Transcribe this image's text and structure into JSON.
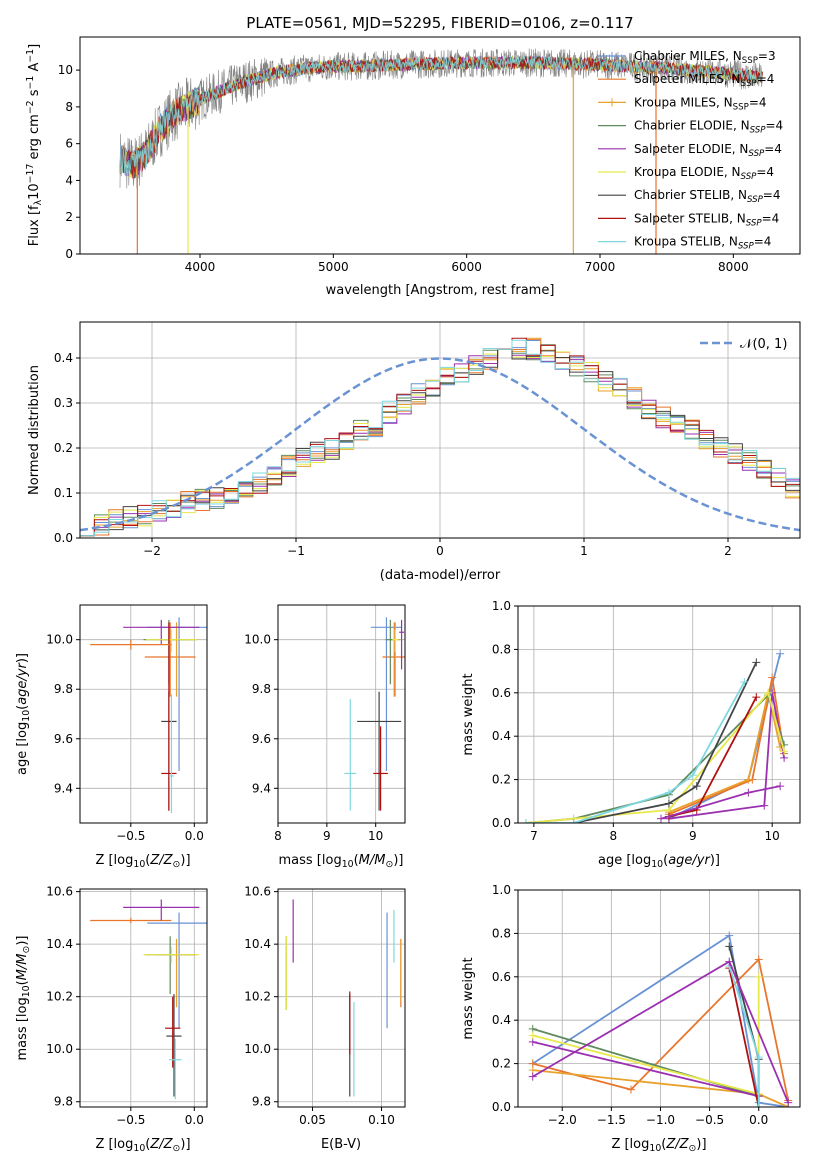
{
  "title": "PLATE=0561, MJD=52295, FIBERID=0106, z=0.117",
  "colors": {
    "chabrier_miles": "#6a93d4",
    "salpeter_miles": "#e8762c",
    "kroupa_miles": "#e8a12c",
    "chabrier_elodie": "#5f8a5f",
    "salpeter_elodie": "#9b30b0",
    "kroupa_elodie": "#e8e84c",
    "chabrier_stelib": "#444444",
    "salpeter_stelib": "#b01010",
    "kroupa_stelib": "#7fd8e0",
    "normal": "#6a93d4"
  },
  "chart_data": [
    {
      "type": "line",
      "panel": "spectrum",
      "title": "PLATE=0561, MJD=52295, FIBERID=0106, z=0.117",
      "xlabel": "wavelength [Angstrom, rest frame]",
      "ylabel": "Flux [f_λ 10^-17 erg cm^-2 s^-1 A^-1]",
      "xlim": [
        3100,
        8500
      ],
      "ylim": [
        0,
        11.8
      ],
      "xticks": [
        4000,
        5000,
        6000,
        7000,
        8000
      ],
      "yticks": [
        0,
        2,
        4,
        6,
        8,
        10
      ],
      "legend_position": "top-right",
      "legend": [
        {
          "base": "Chabrier MILES, N",
          "sub": "SSP",
          "tail": "=3"
        },
        {
          "base": "Salpeter MILES, N",
          "sub": "SSP",
          "tail": "=4"
        },
        {
          "base": "Kroupa MILES, N",
          "sub": "SSP",
          "tail": "=4"
        },
        {
          "base": "Chabrier ELODIE, N",
          "sub": "SSP",
          "tail": "=4"
        },
        {
          "base": "Salpeter ELODIE, N",
          "sub": "SSP",
          "tail": "=4"
        },
        {
          "base": "Kroupa ELODIE, N",
          "sub": "SSP",
          "tail": "=4"
        },
        {
          "base": "Chabrier STELIB, N",
          "sub": "SSP",
          "tail": "=4"
        },
        {
          "base": "Salpeter STELIB, N",
          "sub": "SSP",
          "tail": "=4"
        },
        {
          "base": "Kroupa STELIB, N",
          "sub": "SSP",
          "tail": "=4"
        }
      ],
      "continuum": {
        "x": [
          3400,
          3500,
          3600,
          3700,
          3800,
          3900,
          4000,
          4100,
          4200,
          4300,
          4400,
          4500,
          4600,
          4700,
          4800,
          5000,
          5200,
          5500,
          6000,
          6500,
          7000,
          7500,
          8000,
          8200
        ],
        "y": [
          5.2,
          4.8,
          5.5,
          6.8,
          7.6,
          8.0,
          8.4,
          8.7,
          9.0,
          9.3,
          9.5,
          9.7,
          9.9,
          10.0,
          10.1,
          10.2,
          10.2,
          10.3,
          10.4,
          10.4,
          10.3,
          10.1,
          9.8,
          9.6
        ]
      },
      "spikes": [
        {
          "x": 3530,
          "series": "salpeter_miles"
        },
        {
          "x": 3910,
          "series": "kroupa_elodie"
        },
        {
          "x": 6800,
          "series": "kroupa_miles"
        },
        {
          "x": 7420,
          "series": "salpeter_miles"
        }
      ]
    },
    {
      "type": "bar",
      "panel": "residual-histogram",
      "xlabel": "(data-model)/error",
      "ylabel": "Normed distribution",
      "xlim": [
        -2.5,
        2.5
      ],
      "ylim": [
        0,
        0.48
      ],
      "xticks": [
        -2,
        -1,
        0,
        1,
        2
      ],
      "yticks": [
        0.0,
        0.1,
        0.2,
        0.3,
        0.4
      ],
      "grid": true,
      "legend_position": "top-right",
      "normal_label": "𝒩(0, 1)",
      "bin_width": 0.1,
      "bin_start": -2.5,
      "base_density": [
        0.03,
        0.03,
        0.04,
        0.045,
        0.05,
        0.06,
        0.07,
        0.08,
        0.085,
        0.09,
        0.1,
        0.11,
        0.12,
        0.14,
        0.16,
        0.18,
        0.19,
        0.2,
        0.22,
        0.24,
        0.25,
        0.28,
        0.3,
        0.32,
        0.34,
        0.36,
        0.37,
        0.38,
        0.4,
        0.41,
        0.42,
        0.42,
        0.41,
        0.4,
        0.38,
        0.37,
        0.35,
        0.33,
        0.31,
        0.29,
        0.27,
        0.26,
        0.24,
        0.22,
        0.2,
        0.19,
        0.17,
        0.15,
        0.13,
        0.11,
        0.1,
        0.09,
        0.08,
        0.07,
        0.065,
        0.06,
        0.055,
        0.05,
        0.045,
        0.04
      ]
    },
    {
      "type": "scatter",
      "panel": "age-vs-Z",
      "xlabel": "Z [log10(Z/Z☉)]",
      "ylabel": "age  [log10(age/yr)]",
      "xlim": [
        -0.9,
        0.1
      ],
      "ylim": [
        9.26,
        10.14
      ],
      "xticks": [
        -0.5,
        0.0
      ],
      "yticks": [
        9.4,
        9.6,
        9.8,
        10.0
      ],
      "grid": true,
      "points": [
        {
          "series": "chabrier_miles",
          "x": -0.12,
          "xerr": 0.25,
          "y": 10.05,
          "yerr_lo": 0.58,
          "yerr_hi": 0.04
        },
        {
          "series": "salpeter_miles",
          "x": -0.19,
          "xerr": 0.2,
          "y": 9.93,
          "yerr_lo": 0.16,
          "yerr_hi": 0.14
        },
        {
          "series": "kroupa_miles",
          "x": -0.14,
          "xerr": 0.16,
          "y": 10.0,
          "yerr_lo": 0.23,
          "yerr_hi": 0.07
        },
        {
          "series": "chabrier_elodie",
          "x": -0.2,
          "xerr": 0.2,
          "y": 10.0,
          "yerr_lo": 0.18,
          "yerr_hi": 0.08
        },
        {
          "series": "salpeter_elodie",
          "x": -0.26,
          "xerr": 0.3,
          "y": 10.05,
          "yerr_lo": 0.07,
          "yerr_hi": 0.03
        },
        {
          "series": "kroupa_elodie",
          "x": -0.18,
          "xerr": 0.2,
          "y": 10.0,
          "yerr_lo": 0.05,
          "yerr_hi": 0.04
        },
        {
          "series": "chabrier_stelib",
          "x": -0.2,
          "xerr": 0.06,
          "y": 9.67,
          "yerr_lo": 0.36,
          "yerr_hi": 0.12
        },
        {
          "series": "salpeter_stelib",
          "x": -0.2,
          "xerr": 0.06,
          "y": 9.46,
          "yerr_lo": 0.15,
          "yerr_hi": 0.61
        },
        {
          "series": "kroupa_stelib",
          "x": -0.18,
          "xerr": 0.02,
          "y": 9.45,
          "yerr_lo": 0.15,
          "yerr_hi": 0.33
        },
        {
          "series": "salpeter_miles",
          "x": -0.5,
          "xerr": 0.32,
          "y": 9.98,
          "yerr_lo": 0.02,
          "yerr_hi": 0.02
        }
      ]
    },
    {
      "type": "scatter",
      "panel": "age-vs-mass",
      "xlabel": "mass [log10(M/M☉)]",
      "ylabel": "",
      "xlim": [
        8.0,
        10.6
      ],
      "ylim": [
        9.26,
        10.14
      ],
      "xticks": [
        8,
        9,
        10
      ],
      "yticks": [
        9.4,
        9.6,
        9.8,
        10.0
      ],
      "grid": true,
      "points": [
        {
          "series": "chabrier_miles",
          "x": 10.22,
          "xerr": 0.32,
          "y": 10.05,
          "yerr_lo": 0.58,
          "yerr_hi": 0.04
        },
        {
          "series": "salpeter_miles",
          "x": 10.38,
          "xerr": 0.24,
          "y": 9.93,
          "yerr_lo": 0.16,
          "yerr_hi": 0.14
        },
        {
          "series": "kroupa_miles",
          "x": 10.4,
          "xerr": 0.1,
          "y": 10.0,
          "yerr_lo": 0.23,
          "yerr_hi": 0.07
        },
        {
          "series": "chabrier_elodie",
          "x": 10.3,
          "xerr": 0.1,
          "y": 10.0,
          "yerr_lo": 0.18,
          "yerr_hi": 0.08
        },
        {
          "series": "salpeter_elodie",
          "x": 10.53,
          "xerr": 0.05,
          "y": 10.03,
          "yerr_lo": 0.15,
          "yerr_hi": 0.05
        },
        {
          "series": "kroupa_elodie",
          "x": 10.4,
          "xerr": 0.06,
          "y": 10.0,
          "yerr_lo": 0.05,
          "yerr_hi": 0.04
        },
        {
          "series": "chabrier_stelib",
          "x": 10.07,
          "xerr": 0.45,
          "y": 9.67,
          "yerr_lo": 0.36,
          "yerr_hi": 0.12
        },
        {
          "series": "salpeter_stelib",
          "x": 10.1,
          "xerr": 0.15,
          "y": 9.46,
          "yerr_lo": 0.15,
          "yerr_hi": 0.19
        },
        {
          "series": "kroupa_stelib",
          "x": 9.48,
          "xerr": 0.12,
          "y": 9.46,
          "yerr_lo": 0.15,
          "yerr_hi": 0.3
        }
      ]
    },
    {
      "type": "line",
      "panel": "mass-weight-vs-age",
      "xlabel": "age  [log10(age/yr)]",
      "ylabel": "mass weight",
      "xlim": [
        6.8,
        10.35
      ],
      "ylim": [
        0,
        1.0
      ],
      "xticks": [
        7,
        8,
        9,
        10
      ],
      "yticks": [
        0.0,
        0.2,
        0.4,
        0.6,
        0.8,
        1.0
      ],
      "grid": true,
      "series": [
        {
          "id": "chabrier_miles",
          "x": [
            8.7,
            9.7,
            10.1
          ],
          "y": [
            0.02,
            0.2,
            0.78
          ]
        },
        {
          "id": "salpeter_miles",
          "x": [
            8.7,
            9.75,
            10.0,
            10.15
          ],
          "y": [
            0.04,
            0.2,
            0.67,
            0.32
          ]
        },
        {
          "id": "kroupa_miles",
          "x": [
            8.7,
            9.7,
            9.95,
            10.1
          ],
          "y": [
            0.05,
            0.2,
            0.6,
            0.35
          ]
        },
        {
          "id": "chabrier_elodie",
          "x": [
            6.9,
            7.5,
            8.7,
            9.95,
            10.15
          ],
          "y": [
            0.0,
            0.02,
            0.13,
            0.59,
            0.36
          ]
        },
        {
          "id": "salpeter_elodie",
          "x": [
            8.7,
            9.9,
            10.0,
            10.15
          ],
          "y": [
            0.02,
            0.08,
            0.6,
            0.3
          ]
        },
        {
          "id": "kroupa_elodie",
          "x": [
            6.9,
            7.5,
            8.7,
            9.95,
            10.15
          ],
          "y": [
            0.0,
            0.02,
            0.06,
            0.6,
            0.33
          ]
        },
        {
          "id": "chabrier_stelib",
          "x": [
            7.5,
            8.7,
            9.05,
            9.8
          ],
          "y": [
            0.0,
            0.09,
            0.17,
            0.74
          ]
        },
        {
          "id": "salpeter_stelib",
          "x": [
            8.7,
            9.05,
            9.8
          ],
          "y": [
            0.03,
            0.06,
            0.58
          ]
        },
        {
          "id": "kroupa_stelib",
          "x": [
            6.9,
            7.5,
            8.7,
            9.0,
            9.65
          ],
          "y": [
            0.0,
            0.0,
            0.14,
            0.22,
            0.65
          ]
        },
        {
          "id": "salpeter_elodie",
          "x": [
            8.6,
            9.7,
            10.1
          ],
          "y": [
            0.02,
            0.14,
            0.17
          ]
        }
      ]
    },
    {
      "type": "scatter",
      "panel": "mass-vs-Z",
      "xlabel": "Z [log10(Z/Z☉)]",
      "ylabel": "mass [log10(M/M☉)]",
      "xlim": [
        -0.9,
        0.1
      ],
      "ylim": [
        9.78,
        10.61
      ],
      "xticks": [
        -0.5,
        0.0
      ],
      "yticks": [
        9.8,
        10.0,
        10.2,
        10.4,
        10.6
      ],
      "grid": true,
      "points": [
        {
          "series": "chabrier_miles",
          "x": -0.12,
          "xerr": 0.25,
          "y": 10.48,
          "yerr_lo": 0.4,
          "yerr_hi": 0.04
        },
        {
          "series": "salpeter_miles",
          "x": -0.5,
          "xerr": 0.32,
          "y": 10.49,
          "yerr_lo": 0.01,
          "yerr_hi": 0.01
        },
        {
          "series": "kroupa_miles",
          "x": -0.14,
          "xerr": 0.16,
          "y": 10.36,
          "yerr_lo": 0.2,
          "yerr_hi": 0.06
        },
        {
          "series": "chabrier_elodie",
          "x": -0.19,
          "xerr": 0.2,
          "y": 10.36,
          "yerr_lo": 0.15,
          "yerr_hi": 0.07
        },
        {
          "series": "salpeter_elodie",
          "x": -0.26,
          "xerr": 0.3,
          "y": 10.54,
          "yerr_lo": 0.05,
          "yerr_hi": 0.03
        },
        {
          "series": "kroupa_elodie",
          "x": -0.18,
          "xerr": 0.22,
          "y": 10.36,
          "yerr_lo": 0.03,
          "yerr_hi": 0.03
        },
        {
          "series": "chabrier_stelib",
          "x": -0.16,
          "xerr": 0.06,
          "y": 10.05,
          "yerr_lo": 0.23,
          "yerr_hi": 0.16
        },
        {
          "series": "salpeter_stelib",
          "x": -0.17,
          "xerr": 0.06,
          "y": 10.08,
          "yerr_lo": 0.15,
          "yerr_hi": 0.12
        },
        {
          "series": "kroupa_stelib",
          "x": -0.15,
          "xerr": 0.05,
          "y": 9.96,
          "yerr_lo": 0.15,
          "yerr_hi": 0.08
        }
      ]
    },
    {
      "type": "scatter",
      "panel": "mass-vs-EBV",
      "xlabel": "E(B-V)",
      "ylabel": "",
      "xlim": [
        0.025,
        0.117
      ],
      "ylim": [
        9.78,
        10.61
      ],
      "xticks": [
        0.05,
        0.1
      ],
      "yticks": [
        9.8,
        10.0,
        10.2,
        10.4,
        10.6
      ],
      "grid": true,
      "points": [
        {
          "series": "chabrier_miles",
          "x": 0.104,
          "y": 10.3,
          "yerr_lo": 0.22,
          "yerr_hi": 0.22
        },
        {
          "series": "salpeter_miles",
          "x": 0.114,
          "y": 10.29,
          "yerr_lo": 0.13,
          "yerr_hi": 0.13
        },
        {
          "series": "kroupa_miles",
          "x": 0.114,
          "y": 10.3,
          "yerr_lo": 0.12,
          "yerr_hi": 0.12
        },
        {
          "series": "chabrier_elodie",
          "x": 0.031,
          "y": 10.28,
          "yerr_lo": 0.13,
          "yerr_hi": 0.15
        },
        {
          "series": "salpeter_elodie",
          "x": 0.036,
          "y": 10.45,
          "yerr_lo": 0.12,
          "yerr_hi": 0.12
        },
        {
          "series": "kroupa_elodie",
          "x": 0.031,
          "y": 10.28,
          "yerr_lo": 0.13,
          "yerr_hi": 0.15
        },
        {
          "series": "chabrier_stelib",
          "x": 0.077,
          "y": 10.05,
          "yerr_lo": 0.23,
          "yerr_hi": 0.16
        },
        {
          "series": "salpeter_stelib",
          "x": 0.077,
          "y": 10.1,
          "yerr_lo": 0.12,
          "yerr_hi": 0.12
        },
        {
          "series": "kroupa_stelib",
          "x": 0.08,
          "y": 10.0,
          "yerr_lo": 0.18,
          "yerr_hi": 0.18
        },
        {
          "series": "kroupa_stelib",
          "x": 0.109,
          "y": 10.43,
          "yerr_lo": 0.1,
          "yerr_hi": 0.1
        }
      ]
    },
    {
      "type": "line",
      "panel": "mass-weight-vs-Z",
      "xlabel": "Z [log10(Z/Z☉)]",
      "ylabel": "mass weight",
      "xlim": [
        -2.45,
        0.42
      ],
      "ylim": [
        0,
        1.0
      ],
      "xticks": [
        -2.0,
        -1.5,
        -1.0,
        -0.5,
        0.0
      ],
      "yticks": [
        0.0,
        0.2,
        0.4,
        0.6,
        0.8,
        1.0
      ],
      "grid": true,
      "series": [
        {
          "id": "chabrier_miles",
          "x": [
            -2.3,
            -0.3,
            0.0,
            0.3
          ],
          "y": [
            0.2,
            0.79,
            0.02,
            0.0
          ]
        },
        {
          "id": "salpeter_miles",
          "x": [
            -2.3,
            -1.3,
            0.0,
            0.3
          ],
          "y": [
            0.2,
            0.08,
            0.68,
            0.03
          ]
        },
        {
          "id": "kroupa_miles",
          "x": [
            -2.3,
            0.0,
            0.3
          ],
          "y": [
            0.17,
            0.06,
            0.0
          ]
        },
        {
          "id": "chabrier_elodie",
          "x": [
            -2.3,
            0.0
          ],
          "y": [
            0.36,
            0.05
          ]
        },
        {
          "id": "salpeter_elodie",
          "x": [
            -2.3,
            0.0
          ],
          "y": [
            0.3,
            0.05
          ]
        },
        {
          "id": "kroupa_elodie",
          "x": [
            -2.3,
            0.0,
            0.0
          ],
          "y": [
            0.33,
            0.06,
            0.6
          ]
        },
        {
          "id": "chabrier_stelib",
          "x": [
            -0.3,
            0.0,
            0.0
          ],
          "y": [
            0.74,
            0.22,
            0.0
          ]
        },
        {
          "id": "salpeter_stelib",
          "x": [
            -0.3,
            0.0
          ],
          "y": [
            0.64,
            0.0
          ]
        },
        {
          "id": "kroupa_stelib",
          "x": [
            -0.3,
            0.0,
            0.0
          ],
          "y": [
            0.65,
            0.23,
            0.0
          ]
        },
        {
          "id": "salpeter_elodie",
          "x": [
            -2.3,
            -0.3,
            0.3
          ],
          "y": [
            0.14,
            0.67,
            0.02
          ]
        }
      ]
    }
  ]
}
